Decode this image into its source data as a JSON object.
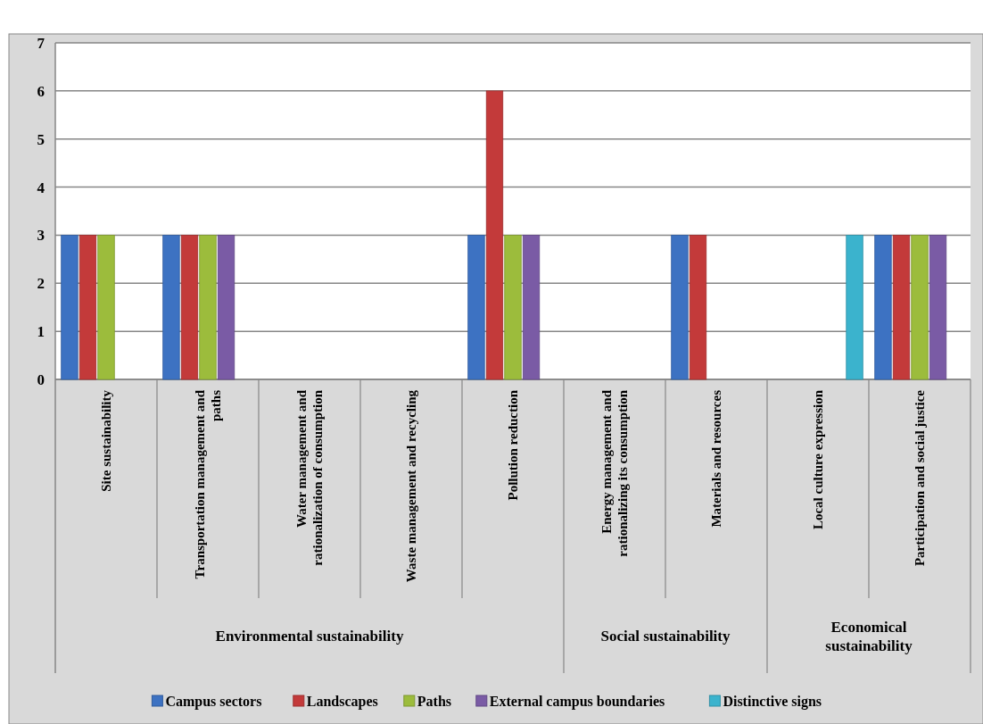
{
  "chart_data": {
    "type": "bar",
    "categories": [
      "Site sustainability",
      "Transportation management and paths",
      "Water management and rationalization of consumption",
      "Waste management and recycling",
      "Pollution reduction",
      "Energy management and rationalizing its consumption",
      "Materials and resources",
      "Local culture expression",
      "Participation and social justice"
    ],
    "series": [
      {
        "name": "Campus sectors",
        "color": "#3d72c2",
        "values": [
          3,
          3,
          null,
          null,
          3,
          null,
          3,
          null,
          3
        ]
      },
      {
        "name": "Landscapes",
        "color": "#c33a3a",
        "values": [
          3,
          3,
          null,
          null,
          6,
          null,
          3,
          null,
          3
        ]
      },
      {
        "name": "Paths",
        "color": "#9cbc3c",
        "values": [
          3,
          3,
          null,
          null,
          3,
          null,
          null,
          null,
          3
        ]
      },
      {
        "name": "External campus boundaries",
        "color": "#7a5ba5",
        "values": [
          null,
          3,
          null,
          null,
          3,
          null,
          null,
          null,
          3
        ]
      },
      {
        "name": "Distinctive signs",
        "color": "#3bb3cd",
        "values": [
          null,
          null,
          null,
          null,
          null,
          null,
          null,
          3,
          null
        ]
      }
    ],
    "annotations": [
      "Environmental sustainability",
      "Social sustainability",
      "Economical sustainability"
    ],
    "ylim": [
      0,
      7
    ],
    "yticks": [
      0,
      1,
      2,
      3,
      4,
      5,
      6,
      7
    ],
    "grid": "y",
    "legend": "bottom"
  }
}
